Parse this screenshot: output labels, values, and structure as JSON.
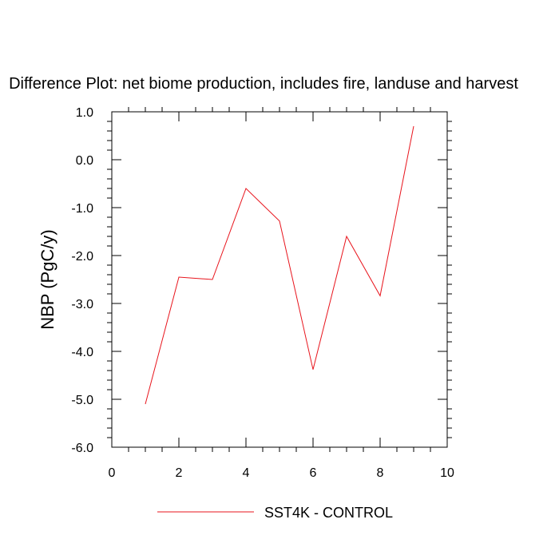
{
  "chart_data": {
    "type": "line",
    "title": "Difference Plot: net biome production, includes fire, landuse and harvest",
    "xlabel": "",
    "ylabel": "NBP  (PgC/y)",
    "xlim": [
      0,
      10
    ],
    "ylim": [
      -6,
      1
    ],
    "x_ticks": [
      0,
      2,
      4,
      6,
      8,
      10
    ],
    "x_tick_labels": [
      "0",
      "2",
      "4",
      "6",
      "8",
      "10"
    ],
    "y_ticks": [
      1,
      0,
      -1,
      -2,
      -3,
      -4,
      -5,
      -6
    ],
    "y_tick_labels": [
      "1.0",
      "0.0",
      "-1.0",
      "-2.0",
      "-3.0",
      "-4.0",
      "-5.0",
      "-6.0"
    ],
    "grid": false,
    "legend_position": "bottom-center",
    "series": [
      {
        "name": "SST4K - CONTROL",
        "color": "#e8141c",
        "x": [
          1,
          2,
          3,
          4,
          5,
          6,
          7,
          8,
          9
        ],
        "y": [
          -5.1,
          -2.45,
          -2.5,
          -0.6,
          -1.28,
          -4.38,
          -1.6,
          -2.84,
          0.7
        ]
      }
    ]
  }
}
